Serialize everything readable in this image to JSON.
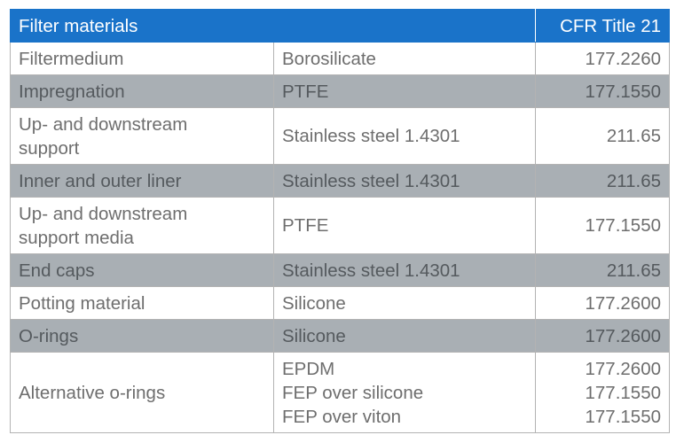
{
  "header": {
    "col1": "Filter materials",
    "col3": "CFR Title 21"
  },
  "rows": [
    {
      "component": "Filtermedium",
      "material": "Borosilicate",
      "cfr": "177.2260",
      "shaded": false
    },
    {
      "component": "Impregnation",
      "material": "PTFE",
      "cfr": "177.1550",
      "shaded": true
    },
    {
      "component_lines": [
        "Up- and downstream",
        "support"
      ],
      "material": "Stainless steel 1.4301",
      "cfr": "211.65",
      "shaded": false
    },
    {
      "component": "Inner and outer liner",
      "material": "Stainless steel 1.4301",
      "cfr": "211.65",
      "shaded": true
    },
    {
      "component_lines": [
        "Up- and downstream",
        "support media"
      ],
      "material": "PTFE",
      "cfr": "177.1550",
      "shaded": false
    },
    {
      "component": "End caps",
      "material": "Stainless steel 1.4301",
      "cfr": "211.65",
      "shaded": true
    },
    {
      "component": "Potting material",
      "material": "Silicone",
      "cfr": "177.2600",
      "shaded": false
    },
    {
      "component": "O-rings",
      "material": "Silicone",
      "cfr": "177.2600",
      "shaded": true
    },
    {
      "component": "Alternative o-rings",
      "materials": [
        "EPDM",
        "FEP over silicone",
        "FEP over viton"
      ],
      "cfrs": [
        "177.2600",
        "177.1550",
        "177.1550"
      ],
      "shaded": false
    }
  ],
  "colors": {
    "header_bg": "#1a73c9",
    "shaded_row": "#a9afb4",
    "text": "#6e6e6e"
  }
}
